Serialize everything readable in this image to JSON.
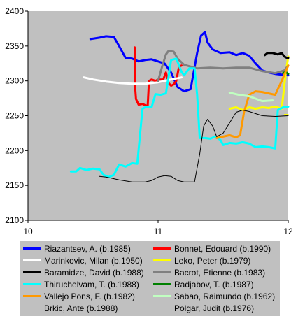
{
  "chart_data": {
    "type": "line",
    "title": "",
    "xlabel": "",
    "ylabel": "",
    "xlim": [
      10,
      12
    ],
    "ylim": [
      2100,
      2400
    ],
    "x_ticks": [
      10,
      11,
      12
    ],
    "y_ticks": [
      2100,
      2150,
      2200,
      2250,
      2300,
      2350,
      2400
    ],
    "grid": false,
    "plot_background": "#c0c0c0",
    "legend_position": "bottom",
    "series": [
      {
        "name": "Riazantsev, A. (b.1985)",
        "color": "#0000ff",
        "width": 3,
        "x": [
          10.48,
          10.55,
          10.6,
          10.66,
          10.7,
          10.75,
          10.8,
          10.85,
          10.9,
          10.95,
          11.0,
          11.05,
          11.1,
          11.15,
          11.2,
          11.25,
          11.3,
          11.33,
          11.36,
          11.38,
          11.42,
          11.48,
          11.55,
          11.6,
          11.65,
          11.7,
          11.75,
          11.8,
          11.85,
          11.9,
          11.95,
          12.0
        ],
        "y": [
          2360,
          2362,
          2364,
          2363,
          2350,
          2333,
          2332,
          2328,
          2330,
          2331,
          2328,
          2325,
          2312,
          2291,
          2285,
          2288,
          2340,
          2365,
          2370,
          2355,
          2345,
          2340,
          2341,
          2337,
          2340,
          2336,
          2325,
          2315,
          2312,
          2310,
          2309,
          2308
        ]
      },
      {
        "name": "Bonnet, Edouard (b.1990)",
        "color": "#ff0000",
        "width": 3,
        "x": [
          10.82,
          10.82,
          10.83,
          10.85,
          10.88,
          10.9,
          10.92,
          10.93,
          10.95,
          10.98,
          11.0,
          11.04,
          11.06,
          11.08,
          11.1,
          11.12,
          11.14,
          11.16,
          11.18
        ],
        "y": [
          2348,
          2300,
          2274,
          2266,
          2267,
          2265,
          2264,
          2300,
          2302,
          2300,
          2302,
          2302,
          2312,
          2297,
          2293,
          2295,
          2300,
          2320,
          2322
        ]
      },
      {
        "name": "Marinkovic, Milan (b.1950)",
        "color": "#ffffff",
        "width": 3,
        "x": [
          10.43,
          10.5,
          10.6,
          10.7,
          10.8,
          10.9,
          11.0,
          11.1,
          11.18
        ],
        "y": [
          2305,
          2302,
          2299,
          2297,
          2296,
          2296,
          2298,
          2302,
          2305
        ]
      },
      {
        "name": "Leko, Peter (b.1979)",
        "color": "#ffff00",
        "width": 3,
        "x": [
          11.55,
          11.6,
          11.65,
          11.7,
          11.75,
          11.8,
          11.85,
          11.9,
          11.95,
          11.98,
          12.0
        ],
        "y": [
          2260,
          2262,
          2258,
          2262,
          2260,
          2262,
          2261,
          2263,
          2260,
          2310,
          2335
        ]
      },
      {
        "name": "Baramidze, David (b.1988)",
        "color": "#000000",
        "width": 3,
        "x": [
          11.82,
          11.84,
          11.88,
          11.92,
          11.95,
          11.97,
          11.99,
          12.0
        ],
        "y": [
          2337,
          2340,
          2340,
          2338,
          2340,
          2335,
          2333,
          2333
        ]
      },
      {
        "name": "Bacrot, Etienne (b.1983)",
        "color": "#808080",
        "width": 3,
        "x": [
          11.0,
          11.03,
          11.06,
          11.08,
          11.12,
          11.15,
          11.2,
          11.3,
          11.4,
          11.5,
          11.6,
          11.7,
          11.8,
          11.9,
          11.97,
          12.0
        ],
        "y": [
          2300,
          2320,
          2338,
          2343,
          2342,
          2332,
          2323,
          2318,
          2319,
          2318,
          2319,
          2319,
          2314,
          2311,
          2315,
          2322
        ]
      },
      {
        "name": "Thiruchelvam, T. (b.1988)",
        "color": "#00ffff",
        "width": 3,
        "x": [
          10.33,
          10.37,
          10.4,
          10.45,
          10.5,
          10.55,
          10.58,
          10.62,
          10.66,
          10.7,
          10.75,
          10.8,
          10.84,
          10.88,
          10.9,
          10.92,
          10.95,
          10.98,
          11.02,
          11.06,
          11.1,
          11.14,
          11.18,
          11.2,
          11.24,
          11.28,
          11.3,
          11.32,
          11.36,
          11.4,
          11.44,
          11.48,
          11.5,
          11.55,
          11.6,
          11.65,
          11.7,
          11.75,
          11.8,
          11.85,
          11.9,
          11.92,
          11.94,
          11.96,
          12.0
        ],
        "y": [
          2170,
          2170,
          2175,
          2172,
          2174,
          2173,
          2165,
          2162,
          2165,
          2180,
          2177,
          2182,
          2181,
          2260,
          2262,
          2263,
          2262,
          2281,
          2280,
          2282,
          2330,
          2332,
          2313,
          2308,
          2318,
          2318,
          2280,
          2218,
          2218,
          2217,
          2220,
          2215,
          2208,
          2211,
          2210,
          2212,
          2210,
          2205,
          2206,
          2205,
          2203,
          2258,
          2260,
          2262,
          2263
        ]
      },
      {
        "name": "Radjabov, T. (b.1987)",
        "color": "#008000",
        "width": 3,
        "x": [
          11.96,
          11.98,
          12.0
        ],
        "y": [
          2311,
          2313,
          2310
        ]
      },
      {
        "name": "Vallejo Pons, F. (b.1982)",
        "color": "#ff9900",
        "width": 3,
        "x": [
          11.45,
          11.5,
          11.55,
          11.6,
          11.63,
          11.66,
          11.7,
          11.75,
          11.8,
          11.85,
          11.9,
          11.95,
          12.0
        ],
        "y": [
          2218,
          2220,
          2222,
          2219,
          2222,
          2255,
          2280,
          2285,
          2284,
          2282,
          2280,
          2300,
          2322
        ]
      },
      {
        "name": "Sabao, Raimundo (b.1962)",
        "color": "#c0ffc0",
        "width": 3,
        "x": [
          11.55,
          11.62,
          11.7,
          11.8,
          11.88
        ],
        "y": [
          2283,
          2280,
          2278,
          2271,
          2272
        ]
      },
      {
        "name": "Brkic, Ante (b.1988)",
        "color": "#ffff00",
        "width": 1,
        "x": [
          11.97,
          12.0
        ],
        "y": [
          2252,
          2252
        ]
      },
      {
        "name": "Polgar, Judit (b.1976)",
        "color": "#000000",
        "width": 1,
        "x": [
          10.55,
          10.6,
          10.7,
          10.8,
          10.9,
          10.95,
          11.0,
          11.05,
          11.1,
          11.15,
          11.2,
          11.28,
          11.32,
          11.35,
          11.38,
          11.42,
          11.45,
          11.5,
          11.55,
          11.6,
          11.65,
          11.7,
          11.8,
          11.9,
          12.0
        ],
        "y": [
          2163,
          2162,
          2158,
          2155,
          2155,
          2157,
          2162,
          2164,
          2163,
          2157,
          2155,
          2155,
          2195,
          2235,
          2245,
          2235,
          2220,
          2225,
          2240,
          2255,
          2258,
          2256,
          2250,
          2249,
          2250
        ]
      }
    ],
    "legend_layout": [
      "Riazantsev, A. (b.1985)",
      "Bonnet, Edouard (b.1990)",
      "Marinkovic, Milan (b.1950)",
      "Leko, Peter (b.1979)",
      "Baramidze, David (b.1988)",
      "Bacrot, Etienne (b.1983)",
      "Thiruchelvam, T. (b.1988)",
      "Radjabov, T. (b.1987)",
      "Vallejo Pons, F. (b.1982)",
      "Sabao, Raimundo (b.1962)",
      "Brkic, Ante (b.1988)",
      "Polgar, Judit (b.1976)"
    ]
  }
}
